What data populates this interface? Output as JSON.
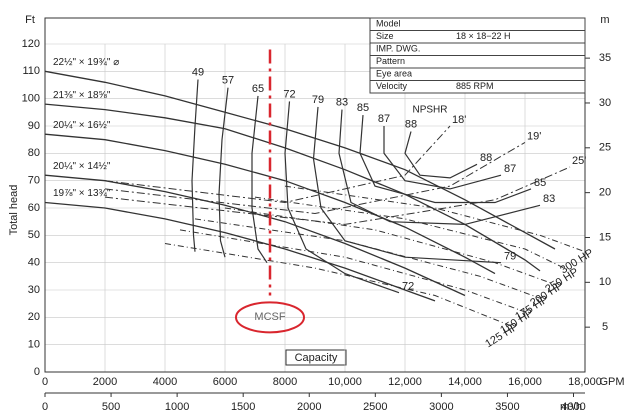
{
  "chart_data": {
    "type": "line",
    "y_label": "Total head",
    "y_unit": "Ft",
    "y2_unit": "m",
    "x_unit": "GPM",
    "x2_unit": "m³/h",
    "capacity_label": "Capacity",
    "npshr_label": "NPSHR",
    "grid": true,
    "xlim": [
      0,
      18000
    ],
    "xticks": [
      0,
      2000,
      4000,
      6000,
      8000,
      {
        "value": 10000,
        "label": "10,000"
      },
      {
        "value": 12000,
        "label": "12,000"
      },
      {
        "value": 14000,
        "label": "14,000"
      },
      {
        "value": 16000,
        "label": "16,000"
      },
      {
        "value": 18000,
        "label": "18,000"
      }
    ],
    "x2lim": [
      0,
      4087
    ],
    "x2ticks": [
      0,
      500,
      1000,
      1500,
      2000,
      2500,
      3000,
      3500,
      4000
    ],
    "ylim": [
      0,
      120
    ],
    "yticks": [
      0,
      10,
      20,
      30,
      40,
      50,
      60,
      70,
      80,
      90,
      100,
      110,
      120
    ],
    "y2lim": [
      0,
      36.576
    ],
    "y2ticks": [
      5,
      10,
      15,
      20,
      25,
      30,
      35
    ],
    "info_table": [
      [
        "Model"
      ],
      [
        "Size",
        "18 × 18−22 H"
      ],
      [
        "IMP. DWG."
      ],
      [
        "Pattern"
      ],
      [
        "Eye area"
      ],
      [
        "Velocity",
        "885 RPM"
      ]
    ],
    "mcsf": {
      "label": "MCSF",
      "x": 7500
    },
    "head_curves": [
      {
        "name": "22½\" × 19¾\" ⌀",
        "color": "#333",
        "x": [
          0,
          2000,
          4000,
          6000,
          8000,
          10000,
          12000,
          14000,
          16000,
          17000
        ],
        "values": [
          110,
          106,
          101,
          95,
          89,
          82,
          74,
          63,
          51,
          45
        ]
      },
      {
        "name": "21⅜\" × 18⅝\"",
        "color": "#333",
        "x": [
          0,
          2000,
          4000,
          6000,
          8000,
          10000,
          12000,
          14000,
          16000,
          16500
        ],
        "values": [
          98,
          96,
          93,
          89,
          82,
          74,
          65,
          54,
          41,
          37
        ]
      },
      {
        "name": "20¼\" × 16½\"",
        "color": "#333",
        "x": [
          0,
          2000,
          4000,
          6000,
          8000,
          10000,
          12000,
          14000,
          15000
        ],
        "values": [
          87,
          85,
          81,
          76,
          70,
          62,
          53,
          42,
          36
        ]
      },
      {
        "name": "20¼\" × 14½\"",
        "color": "#333",
        "x": [
          0,
          2000,
          4000,
          6000,
          8000,
          10000,
          12000,
          14000
        ],
        "values": [
          72,
          70,
          66,
          61,
          55,
          47,
          38,
          28
        ]
      },
      {
        "name": "19⅞\" × 13¾\"",
        "color": "#333",
        "x": [
          0,
          2000,
          4000,
          6000,
          8000,
          10000,
          12000,
          13000
        ],
        "values": [
          62,
          60,
          56,
          51,
          45,
          38,
          30,
          26
        ]
      }
    ],
    "efficiency_curves": [
      {
        "name": "49",
        "x": [
          5100,
          5000,
          4900,
          4950,
          5000
        ],
        "values": [
          107,
          90,
          70,
          50,
          44
        ]
      },
      {
        "name": "57",
        "x": [
          6100,
          5900,
          5800,
          5850,
          6000
        ],
        "values": [
          104,
          85,
          65,
          48,
          42
        ]
      },
      {
        "name": "65",
        "x": [
          7100,
          6900,
          6900,
          7100,
          7400
        ],
        "values": [
          101,
          80,
          60,
          45,
          40
        ]
      },
      {
        "name": "72",
        "x": [
          8150,
          8000,
          8100,
          8700,
          10000,
          11800
        ],
        "values": [
          99,
          80,
          60,
          45,
          36,
          29
        ]
      },
      {
        "name": "79",
        "x": [
          9100,
          8950,
          9200,
          10000,
          12000,
          15200
        ],
        "values": [
          97,
          78,
          60,
          48,
          42,
          40
        ]
      },
      {
        "name": "83",
        "x": [
          9900,
          9800,
          10200,
          11500,
          14000,
          16500
        ],
        "values": [
          96,
          80,
          62,
          55,
          54,
          61
        ]
      },
      {
        "name": "85",
        "x": [
          10600,
          10500,
          11000,
          13000,
          15000,
          16200
        ],
        "values": [
          94,
          80,
          68,
          62,
          62,
          67
        ]
      },
      {
        "name": "87",
        "x": [
          11300,
          11300,
          12000,
          13500,
          15200
        ],
        "values": [
          90,
          80,
          70,
          67,
          72
        ]
      },
      {
        "name": "88",
        "x": [
          12200,
          12000,
          12500,
          13500,
          14400
        ],
        "values": [
          88,
          80,
          72,
          71,
          76
        ]
      }
    ],
    "hp_curves": [
      {
        "name": "125 HP",
        "x": [
          4000,
          9000,
          13000,
          15500
        ],
        "values": [
          47,
          38,
          28,
          17
        ]
      },
      {
        "name": "150 HP",
        "x": [
          4500,
          10000,
          14000,
          16000
        ],
        "values": [
          52,
          42,
          30,
          22
        ]
      },
      {
        "name": "175 HP",
        "x": [
          5000,
          10000,
          14500,
          16500
        ],
        "values": [
          56,
          48,
          35,
          27
        ]
      },
      {
        "name": "200 HP",
        "x": [
          6000,
          11000,
          15000,
          17000
        ],
        "values": [
          60,
          52,
          40,
          32
        ]
      },
      {
        "name": "250 HP",
        "x": [
          7000,
          12000,
          16000,
          17500
        ],
        "values": [
          64,
          56,
          45,
          37
        ]
      },
      {
        "name": "300 HP",
        "x": [
          8000,
          13000,
          16500,
          18000
        ],
        "values": [
          68,
          60,
          50,
          44
        ]
      }
    ],
    "npshr_curves": [
      {
        "name": "18'",
        "x": [
          2000,
          8000,
          12000,
          13500
        ],
        "values": [
          70,
          62,
          72,
          90
        ]
      },
      {
        "name": "19'",
        "x": [
          2000,
          9000,
          13500,
          16000
        ],
        "values": [
          67,
          58,
          68,
          84
        ]
      },
      {
        "name": "25'",
        "x": [
          2000,
          10000,
          15000,
          17500
        ],
        "values": [
          64,
          54,
          63,
          75
        ]
      }
    ]
  }
}
